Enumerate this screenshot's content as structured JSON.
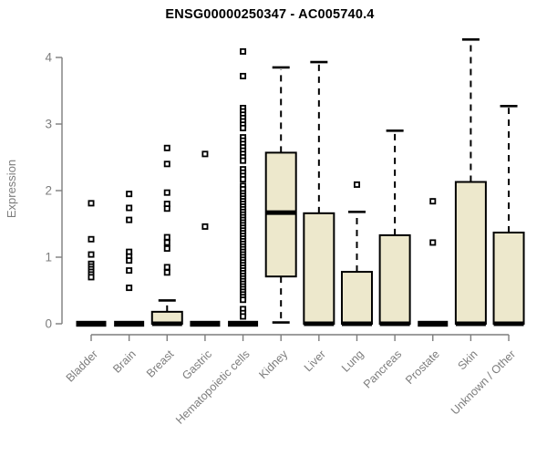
{
  "page": {
    "background": "#ffffff"
  },
  "chart_data": {
    "type": "boxplot",
    "title": "ENSG00000250347 - AC005740.4",
    "ylabel": "Expression",
    "xlabel": "",
    "ylim": [
      0,
      4
    ],
    "yticks": [
      0,
      1,
      2,
      3,
      4
    ],
    "grid": false,
    "legend": "none",
    "colors": {
      "box_fill": "#EDE8CC",
      "box_stroke": "#000000",
      "median": "#000000",
      "whisker": "#000000",
      "axis": "#7d7d7d",
      "title": "#000000"
    },
    "categories": [
      "Bladder",
      "Brain",
      "Breast",
      "Gastric",
      "Hematopoietic cells",
      "Kidney",
      "Liver",
      "Lung",
      "Pancreas",
      "Prostate",
      "Skin",
      "Unknown / Other"
    ],
    "series": [
      {
        "category": "Bladder",
        "q1": 0,
        "median": 0,
        "q3": 0,
        "whisker_low": 0,
        "whisker_high": 0,
        "outliers": [
          1.81,
          1.27,
          1.04,
          0.9,
          0.86,
          0.82,
          0.78,
          0.74,
          0.7
        ]
      },
      {
        "category": "Brain",
        "q1": 0,
        "median": 0,
        "q3": 0,
        "whisker_low": 0,
        "whisker_high": 0,
        "outliers": [
          1.95,
          1.74,
          1.56,
          1.08,
          1.01,
          0.95,
          0.8,
          0.54
        ]
      },
      {
        "category": "Breast",
        "q1": 0,
        "median": 0,
        "q3": 0.18,
        "whisker_low": 0,
        "whisker_high": 0.35,
        "outliers": [
          2.64,
          2.4,
          1.97,
          1.8,
          1.73,
          1.3,
          1.22,
          1.13,
          0.85,
          0.77
        ]
      },
      {
        "category": "Gastric",
        "q1": 0,
        "median": 0,
        "q3": 0,
        "whisker_low": 0,
        "whisker_high": 0,
        "outliers": [
          2.55,
          1.46
        ]
      },
      {
        "category": "Hematopoietic cells",
        "q1": 0,
        "median": 0,
        "q3": 0,
        "whisker_low": 0,
        "whisker_high": 0,
        "outliers": [
          4.09,
          3.72,
          3.24,
          3.19,
          3.14,
          3.09,
          3.04,
          2.99,
          2.94,
          2.8,
          2.75,
          2.7,
          2.65,
          2.6,
          2.55,
          2.5,
          2.45,
          2.32,
          2.27,
          2.22,
          2.17,
          2.07,
          2.02,
          1.96,
          1.92,
          1.88,
          1.84,
          1.8,
          1.76,
          1.72,
          1.68,
          1.64,
          1.6,
          1.56,
          1.52,
          1.48,
          1.44,
          1.4,
          1.36,
          1.32,
          1.28,
          1.24,
          1.2,
          1.16,
          1.12,
          1.08,
          1.04,
          1.0,
          0.96,
          0.92,
          0.88,
          0.84,
          0.8,
          0.76,
          0.72,
          0.68,
          0.64,
          0.6,
          0.56,
          0.52,
          0.48,
          0.44,
          0.4,
          0.36,
          0.22,
          0.16,
          0.11
        ]
      },
      {
        "category": "Kidney",
        "q1": 0.71,
        "median": 1.67,
        "q3": 2.57,
        "whisker_low": 0.02,
        "whisker_high": 3.85,
        "outliers": []
      },
      {
        "category": "Liver",
        "q1": 0,
        "median": 0,
        "q3": 1.66,
        "whisker_low": 0,
        "whisker_high": 3.93,
        "outliers": []
      },
      {
        "category": "Lung",
        "q1": 0,
        "median": 0,
        "q3": 0.78,
        "whisker_low": 0,
        "whisker_high": 1.68,
        "outliers": [
          2.09
        ]
      },
      {
        "category": "Pancreas",
        "q1": 0,
        "median": 0,
        "q3": 1.33,
        "whisker_low": 0,
        "whisker_high": 2.9,
        "outliers": []
      },
      {
        "category": "Prostate",
        "q1": 0,
        "median": 0,
        "q3": 0,
        "whisker_low": 0,
        "whisker_high": 0,
        "outliers": [
          1.84,
          1.22
        ]
      },
      {
        "category": "Skin",
        "q1": 0,
        "median": 0,
        "q3": 2.13,
        "whisker_low": 0,
        "whisker_high": 4.27,
        "outliers": []
      },
      {
        "category": "Unknown / Other",
        "q1": 0,
        "median": 0,
        "q3": 1.37,
        "whisker_low": 0,
        "whisker_high": 3.27,
        "outliers": []
      }
    ]
  }
}
